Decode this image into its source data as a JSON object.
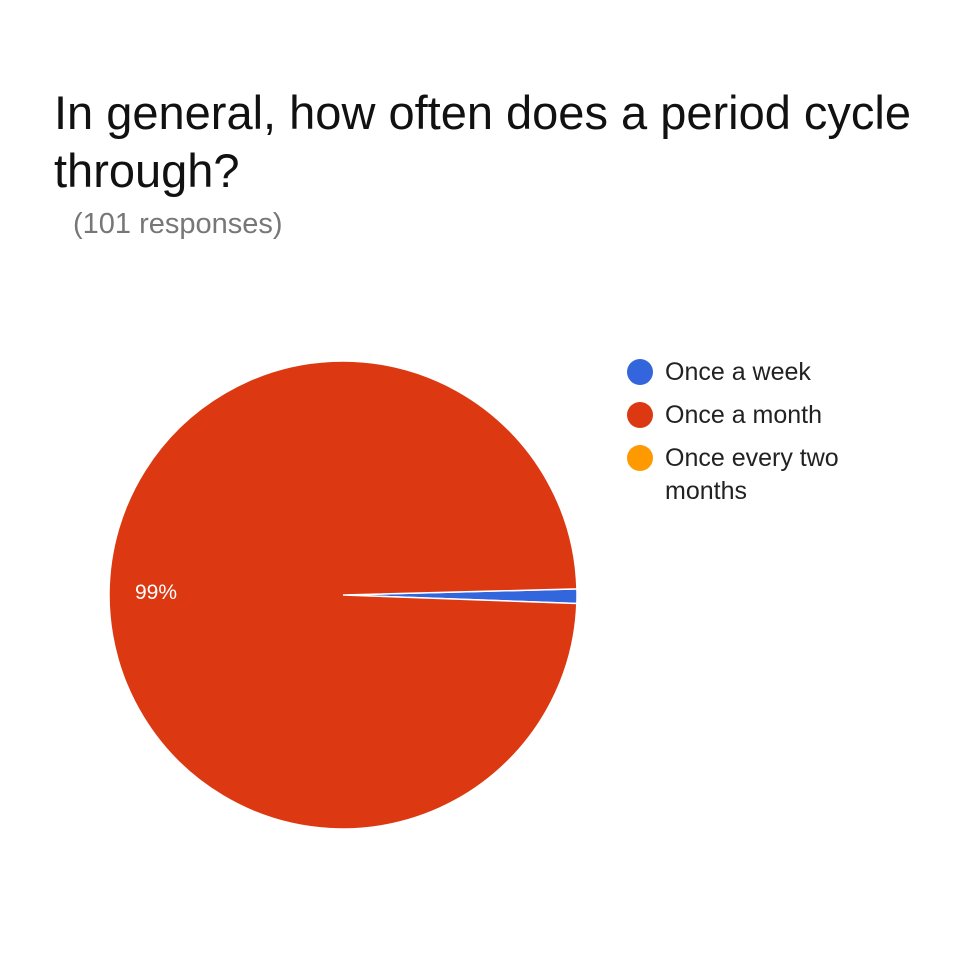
{
  "chart_data": {
    "type": "pie",
    "title": "In general, how often does a period cycle through?",
    "subtitle": "(101 responses)",
    "categories": [
      "Once a week",
      "Once a month",
      "Once every two months"
    ],
    "values": [
      1,
      100,
      0
    ],
    "colors": [
      "#3366dd",
      "#dc3912",
      "#ff9900"
    ],
    "data_labels": [
      {
        "category": "Once a month",
        "text": "99%"
      }
    ],
    "legend_position": "right"
  }
}
